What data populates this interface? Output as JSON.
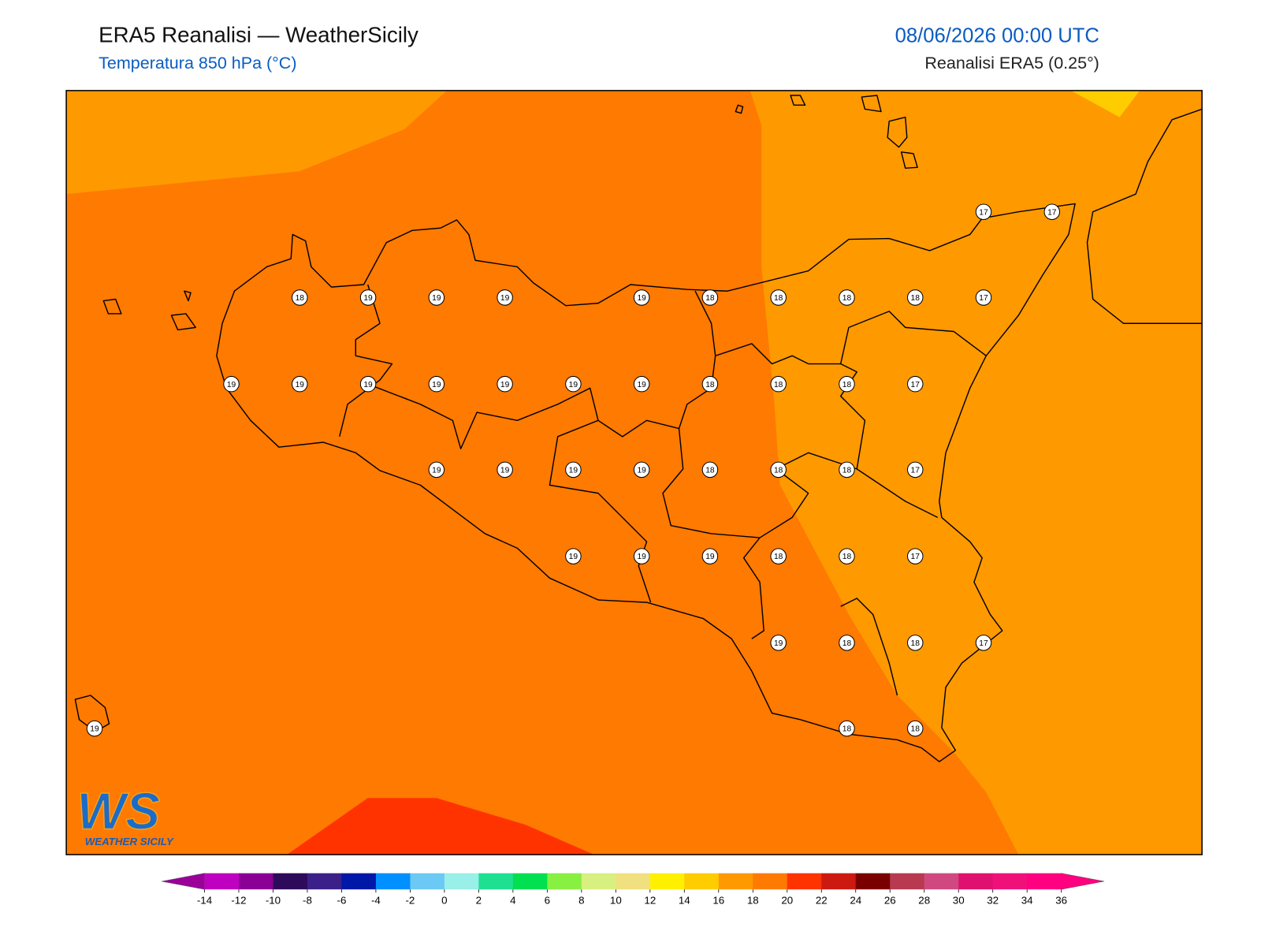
{
  "header": {
    "title": "ERA5 Reanalisi — WeatherSicily",
    "subtitle": "Temperatura 850 hPa (°C)",
    "datetime": "08/06/2026 00:00 UTC",
    "source": "Reanalisi ERA5 (0.25°)"
  },
  "grid": [
    [
      null,
      null,
      null,
      null,
      null,
      null,
      null,
      null,
      null,
      null,
      null,
      null,
      null,
      17,
      17
    ],
    [
      null,
      null,
      null,
      18,
      19,
      19,
      19,
      null,
      19,
      18,
      18,
      18,
      18,
      17,
      null
    ],
    [
      null,
      null,
      19,
      19,
      19,
      19,
      19,
      19,
      19,
      18,
      18,
      18,
      17,
      null,
      null
    ],
    [
      null,
      null,
      null,
      null,
      null,
      19,
      19,
      19,
      19,
      18,
      18,
      18,
      17,
      null,
      null
    ],
    [
      null,
      null,
      null,
      null,
      null,
      null,
      null,
      19,
      19,
      19,
      18,
      18,
      17,
      null,
      null
    ],
    [
      null,
      null,
      null,
      null,
      null,
      null,
      null,
      null,
      null,
      null,
      19,
      18,
      18,
      17,
      null
    ],
    [
      19,
      null,
      null,
      null,
      null,
      null,
      null,
      null,
      null,
      null,
      null,
      18,
      18,
      null,
      null
    ]
  ],
  "colorbar": {
    "ticks": [
      -14,
      -12,
      -10,
      -8,
      -6,
      -4,
      -2,
      0,
      2,
      4,
      6,
      8,
      10,
      12,
      14,
      16,
      18,
      20,
      22,
      24,
      26,
      28,
      30,
      32,
      34,
      36
    ],
    "under": "#9b009b",
    "over": "#ff0080",
    "colors": [
      "#c000c0",
      "#8a0094",
      "#2e0a5a",
      "#3a2088",
      "#0018a8",
      "#0090ff",
      "#6cc8f4",
      "#98f0e8",
      "#1ee090",
      "#00e050",
      "#88f040",
      "#d8f080",
      "#f0e080",
      "#fff000",
      "#ffcc00",
      "#ff9900",
      "#ff7a00",
      "#ff3300",
      "#cc1a10",
      "#7a0000",
      "#b83a50",
      "#d04880",
      "#e01070",
      "#f0107a",
      "#ff0080"
    ]
  },
  "logo": {
    "mark": "WS",
    "name": "WEATHER SICILY"
  }
}
